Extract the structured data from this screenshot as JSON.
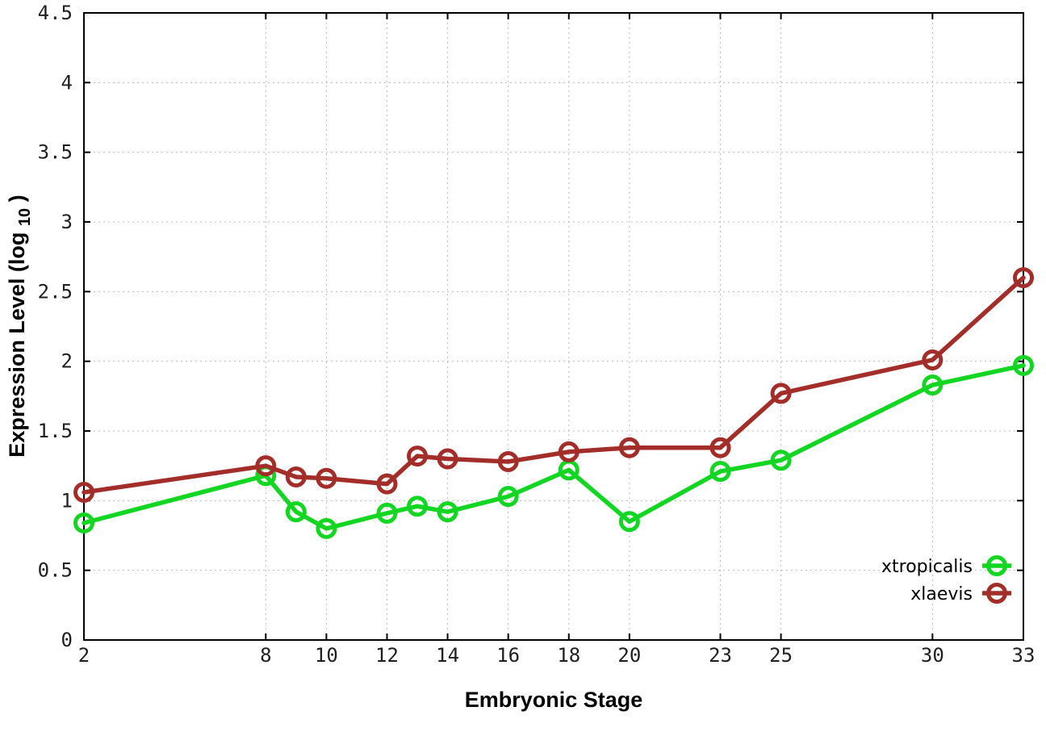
{
  "labels": {
    "xlabel": "Embryonic Stage",
    "ylabel_prefix": "Expression Level (log",
    "ylabel_sub": "10",
    "ylabel_suffix": ")"
  },
  "colors": {
    "background": "#ffffff",
    "axis": "#000000",
    "grid": "#bbbbbb",
    "tick_text": "#1f1f1f",
    "xtropicalis": "#12d622",
    "xlaevis": "#a32e29"
  },
  "chart_data": {
    "type": "line",
    "title": "",
    "xlabel": "Embryonic Stage",
    "ylabel": "Expression Level (log10)",
    "xlim": [
      2,
      33
    ],
    "ylim": [
      0,
      4.5
    ],
    "grid": true,
    "grid_style": "dotted",
    "legend_position": "inside-bottom-right",
    "x": [
      2,
      8,
      9,
      10,
      12,
      13,
      14,
      16,
      18,
      20,
      23,
      25,
      30,
      33
    ],
    "xticks": [
      2,
      8,
      10,
      12,
      14,
      16,
      18,
      20,
      23,
      25,
      30,
      33
    ],
    "xtick_labels": [
      "2",
      "8",
      "10",
      "12",
      "14",
      "16",
      "18",
      "20",
      "23",
      "25",
      "30",
      "33"
    ],
    "yticks": [
      0,
      0.5,
      1,
      1.5,
      2,
      2.5,
      3,
      3.5,
      4,
      4.5
    ],
    "ytick_labels": [
      "0",
      "0.5",
      "1",
      "1.5",
      "2",
      "2.5",
      "3",
      "3.5",
      "4",
      "4.5"
    ],
    "marker": "open-circle",
    "series": [
      {
        "name": "xtropicalis",
        "color": "#12d622",
        "values": [
          0.84,
          1.18,
          0.92,
          0.8,
          0.91,
          0.96,
          0.92,
          1.03,
          1.22,
          0.85,
          1.21,
          1.29,
          1.83,
          1.97
        ]
      },
      {
        "name": "xlaevis",
        "color": "#a32e29",
        "values": [
          1.06,
          1.25,
          1.17,
          1.16,
          1.12,
          1.32,
          1.3,
          1.28,
          1.35,
          1.38,
          1.38,
          1.77,
          2.01,
          2.6
        ]
      }
    ]
  }
}
